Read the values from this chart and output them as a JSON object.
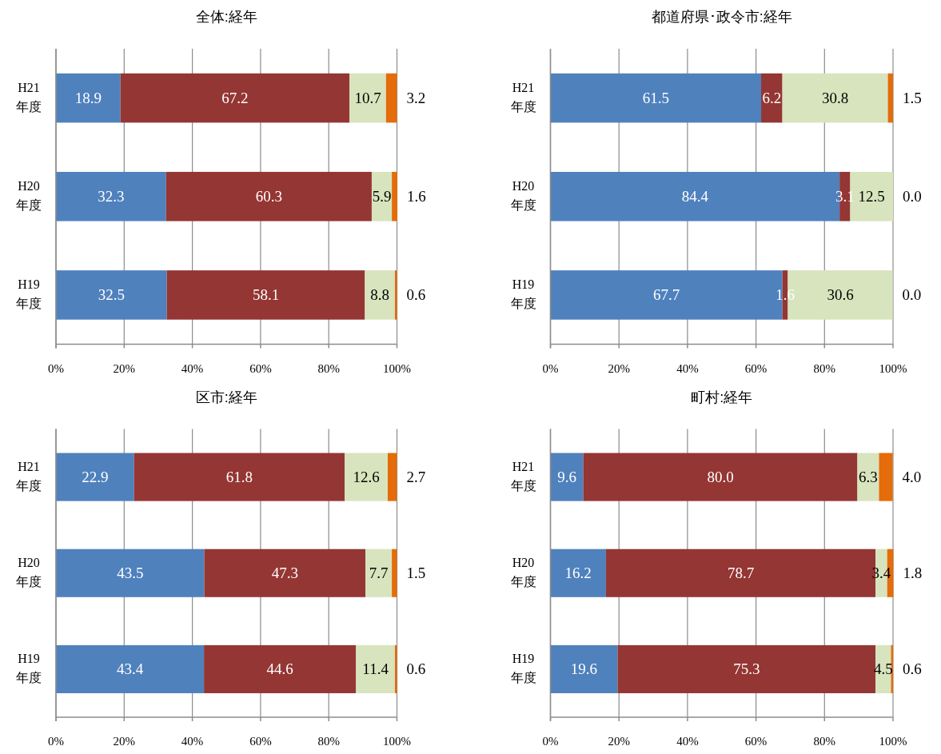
{
  "chart_data": [
    {
      "type": "bar",
      "orientation": "horizontal",
      "stacked": true,
      "title": "全体:経年",
      "categories": [
        "H21\n年度",
        "H20\n年度",
        "H19\n年度"
      ],
      "series": [
        {
          "color": "#4f81bd",
          "values": [
            18.9,
            32.3,
            32.5
          ],
          "value_labels": [
            "18.9",
            "32.3",
            "32.5"
          ]
        },
        {
          "color": "#943634",
          "values": [
            67.2,
            60.3,
            58.1
          ],
          "value_labels": [
            "67.2",
            "60.3",
            "58.1"
          ]
        },
        {
          "color": "#d7e4bd",
          "values": [
            10.7,
            5.9,
            8.8
          ],
          "value_labels": [
            "10.7",
            "5.9",
            "8.8"
          ]
        },
        {
          "color": "#e46c0a",
          "values": [
            3.2,
            1.6,
            0.6
          ],
          "value_labels": [
            "3.2",
            "1.6",
            "0.6"
          ]
        }
      ],
      "xlim": [
        0,
        100
      ],
      "xticks": [
        {
          "value": 0,
          "label": "0%"
        },
        {
          "value": 20,
          "label": "20%"
        },
        {
          "value": 40,
          "label": "40%"
        },
        {
          "value": 60,
          "label": "60%"
        },
        {
          "value": 80,
          "label": "80%"
        },
        {
          "value": 100,
          "label": "100%"
        }
      ],
      "grid": "x"
    },
    {
      "type": "bar",
      "orientation": "horizontal",
      "stacked": true,
      "title": "都道府県･政令市:経年",
      "categories": [
        "H21\n年度",
        "H20\n年度",
        "H19\n年度"
      ],
      "series": [
        {
          "color": "#4f81bd",
          "values": [
            61.5,
            84.4,
            67.7
          ],
          "value_labels": [
            "61.5",
            "84.4",
            "67.7"
          ]
        },
        {
          "color": "#943634",
          "values": [
            6.2,
            3.1,
            1.6
          ],
          "value_labels": [
            "6.2",
            "3.1",
            "1.6"
          ]
        },
        {
          "color": "#d7e4bd",
          "values": [
            30.8,
            12.5,
            30.6
          ],
          "value_labels": [
            "30.8",
            "12.5",
            "30.6"
          ]
        },
        {
          "color": "#e46c0a",
          "values": [
            1.5,
            0,
            0
          ],
          "value_labels": [
            "1.5",
            "0.0",
            "0.0"
          ]
        }
      ],
      "xlim": [
        0,
        100
      ],
      "xticks": [
        {
          "value": 0,
          "label": "0%"
        },
        {
          "value": 20,
          "label": "20%"
        },
        {
          "value": 40,
          "label": "40%"
        },
        {
          "value": 60,
          "label": "60%"
        },
        {
          "value": 80,
          "label": "80%"
        },
        {
          "value": 100,
          "label": "100%"
        }
      ],
      "grid": "x"
    },
    {
      "type": "bar",
      "orientation": "horizontal",
      "stacked": true,
      "title": "区市:経年",
      "categories": [
        "H21\n年度",
        "H20\n年度",
        "H19\n年度"
      ],
      "series": [
        {
          "color": "#4f81bd",
          "values": [
            22.9,
            43.5,
            43.4
          ],
          "value_labels": [
            "22.9",
            "43.5",
            "43.4"
          ]
        },
        {
          "color": "#943634",
          "values": [
            61.8,
            47.3,
            44.6
          ],
          "value_labels": [
            "61.8",
            "47.3",
            "44.6"
          ]
        },
        {
          "color": "#d7e4bd",
          "values": [
            12.6,
            7.7,
            11.4
          ],
          "value_labels": [
            "12.6",
            "7.7",
            "11.4"
          ]
        },
        {
          "color": "#e46c0a",
          "values": [
            2.7,
            1.5,
            0.6
          ],
          "value_labels": [
            "2.7",
            "1.5",
            "0.6"
          ]
        }
      ],
      "xlim": [
        0,
        100
      ],
      "xticks": [
        {
          "value": 0,
          "label": "0%"
        },
        {
          "value": 20,
          "label": "20%"
        },
        {
          "value": 40,
          "label": "40%"
        },
        {
          "value": 60,
          "label": "60%"
        },
        {
          "value": 80,
          "label": "80%"
        },
        {
          "value": 100,
          "label": "100%"
        }
      ],
      "grid": "x"
    },
    {
      "type": "bar",
      "orientation": "horizontal",
      "stacked": true,
      "title": "町村:経年",
      "categories": [
        "H21\n年度",
        "H20\n年度",
        "H19\n年度"
      ],
      "series": [
        {
          "color": "#4f81bd",
          "values": [
            9.6,
            16.2,
            19.6
          ],
          "value_labels": [
            "9.6",
            "16.2",
            "19.6"
          ]
        },
        {
          "color": "#943634",
          "values": [
            80.0,
            78.7,
            75.3
          ],
          "value_labels": [
            "80.0",
            "78.7",
            "75.3"
          ]
        },
        {
          "color": "#d7e4bd",
          "values": [
            6.3,
            3.4,
            4.5
          ],
          "value_labels": [
            "6.3",
            "3.4",
            "4.5"
          ]
        },
        {
          "color": "#e46c0a",
          "values": [
            4.0,
            1.8,
            0.6
          ],
          "value_labels": [
            "4.0",
            "1.8",
            "0.6"
          ]
        }
      ],
      "xlim": [
        0,
        100
      ],
      "xticks": [
        {
          "value": 0,
          "label": "0%"
        },
        {
          "value": 20,
          "label": "20%"
        },
        {
          "value": 40,
          "label": "40%"
        },
        {
          "value": 60,
          "label": "60%"
        },
        {
          "value": 80,
          "label": "80%"
        },
        {
          "value": 100,
          "label": "100%"
        }
      ],
      "grid": "x"
    }
  ]
}
